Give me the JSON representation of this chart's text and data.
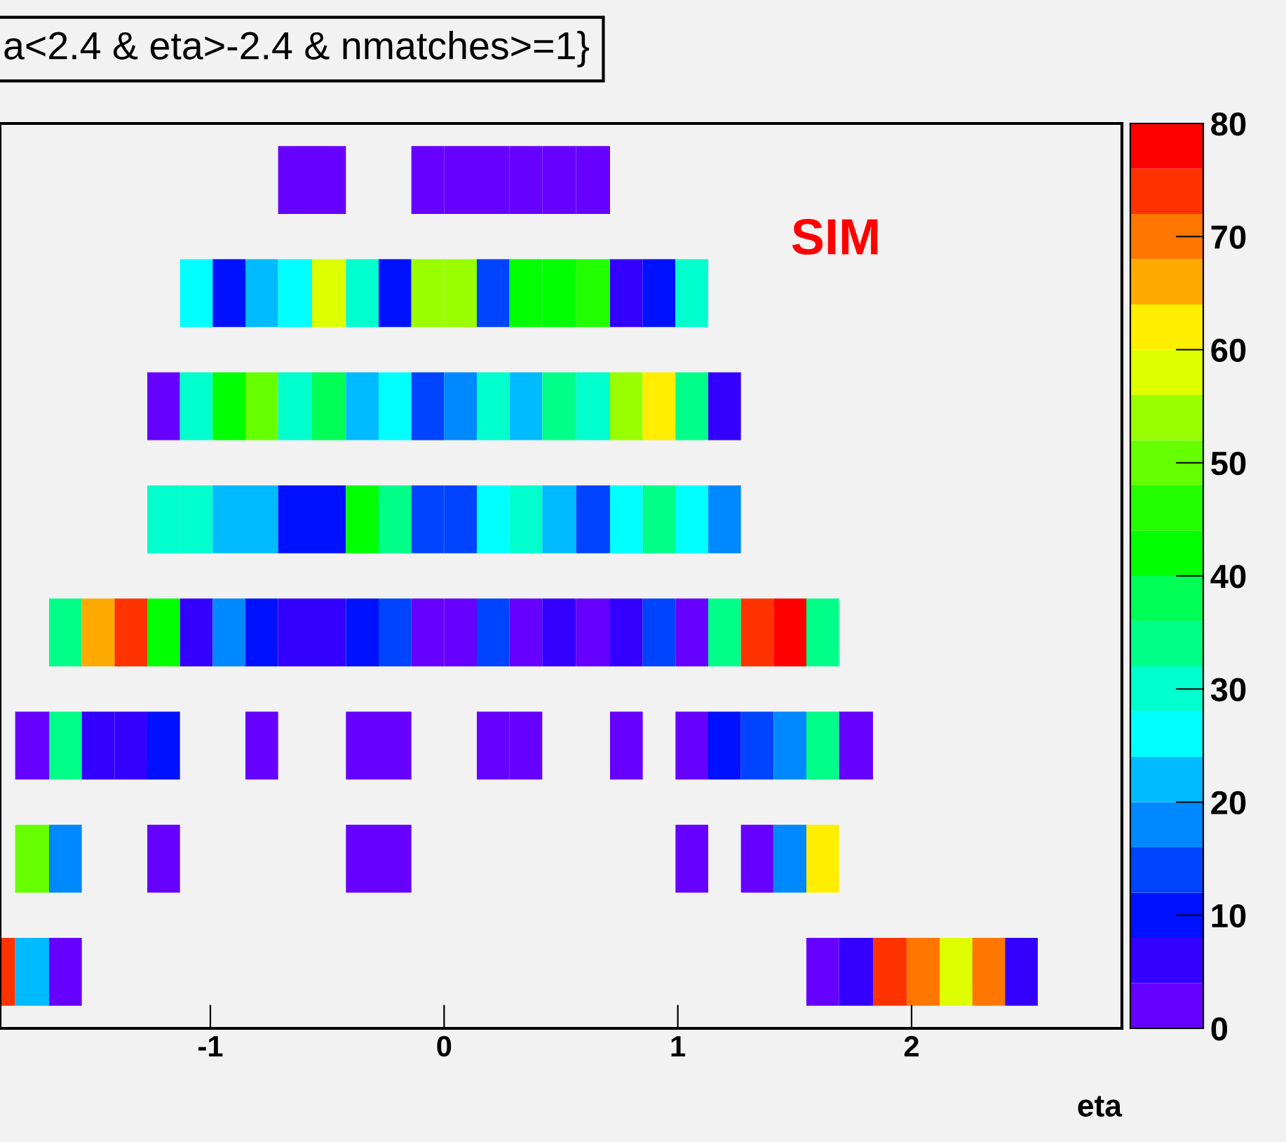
{
  "chart_data": {
    "type": "heatmap",
    "title": "a<2.4 & eta>-2.4 & nmatches>=1}",
    "xlabel": "eta",
    "annotations": [
      "SIM"
    ],
    "x": [
      -1.91,
      -1.76,
      -1.62,
      -1.48,
      -1.34,
      -1.2,
      -1.06,
      -0.92,
      -0.78,
      -0.64,
      -0.49,
      -0.35,
      -0.21,
      -0.07,
      0.07,
      0.21,
      0.35,
      0.49,
      0.64,
      0.78,
      0.92,
      1.06,
      1.2,
      1.34,
      1.48,
      1.62,
      1.76,
      1.91,
      2.05,
      2.19,
      2.33,
      2.47
    ],
    "xlim": [
      -1.9,
      2.9
    ],
    "xticks": [
      -1,
      0,
      1,
      2
    ],
    "tick_labels": "x",
    "y_categories": [
      null,
      null,
      null,
      null,
      null,
      null,
      null,
      null
    ],
    "clim": [
      0,
      80
    ],
    "cticks": [
      0,
      10,
      20,
      30,
      40,
      50,
      60,
      70,
      80
    ],
    "colors": [
      "#6600ff",
      "#3300ff",
      "#0011ff",
      "#0044ff",
      "#0088ff",
      "#00bbff",
      "#00ffff",
      "#00ffcc",
      "#00ff88",
      "#00ff55",
      "#00ff00",
      "#22ff00",
      "#66ff00",
      "#99ff00",
      "#ddff00",
      "#ffee00",
      "#ffaa00",
      "#ff7700",
      "#ff3300",
      "#ff0000"
    ],
    "cells": [
      [
        null,
        null,
        null,
        null,
        null,
        null,
        null,
        null,
        null,
        2,
        2,
        null,
        null,
        2,
        2,
        2,
        2,
        2,
        2,
        null,
        null,
        null,
        null,
        null,
        null,
        null,
        null,
        null,
        null,
        null,
        null,
        null
      ],
      [
        null,
        null,
        null,
        null,
        null,
        null,
        26,
        10,
        22,
        26,
        58,
        30,
        10,
        54,
        54,
        14,
        42,
        42,
        46,
        6,
        10,
        30,
        null,
        null,
        null,
        null,
        null,
        null,
        null,
        null,
        null,
        null
      ],
      [
        null,
        null,
        null,
        null,
        null,
        2,
        30,
        42,
        50,
        30,
        38,
        22,
        26,
        14,
        18,
        30,
        22,
        34,
        30,
        54,
        62,
        34,
        6,
        null,
        null,
        null,
        null,
        null,
        null,
        null,
        null,
        null
      ],
      [
        null,
        null,
        null,
        null,
        null,
        30,
        30,
        22,
        22,
        10,
        10,
        42,
        34,
        14,
        14,
        26,
        30,
        22,
        14,
        26,
        34,
        26,
        18,
        null,
        null,
        null,
        null,
        null,
        null,
        null,
        null,
        null
      ],
      [
        null,
        null,
        34,
        66,
        74,
        42,
        6,
        18,
        10,
        6,
        6,
        10,
        14,
        2,
        2,
        14,
        2,
        6,
        2,
        6,
        14,
        2,
        34,
        74,
        78,
        34,
        null,
        null,
        null,
        null,
        null,
        null
      ],
      [
        null,
        2,
        34,
        6,
        6,
        10,
        null,
        null,
        2,
        null,
        null,
        2,
        2,
        null,
        null,
        2,
        2,
        null,
        null,
        2,
        null,
        2,
        10,
        14,
        18,
        34,
        2,
        null,
        null,
        null,
        null,
        null
      ],
      [
        null,
        50,
        18,
        null,
        null,
        2,
        null,
        null,
        null,
        null,
        null,
        2,
        2,
        null,
        null,
        null,
        null,
        null,
        null,
        null,
        null,
        2,
        null,
        2,
        18,
        62,
        null,
        null,
        null,
        null,
        null,
        null
      ],
      [
        74,
        22,
        2,
        null,
        null,
        null,
        null,
        null,
        null,
        null,
        null,
        null,
        null,
        null,
        null,
        null,
        null,
        null,
        null,
        null,
        null,
        null,
        null,
        null,
        null,
        2,
        6,
        74,
        70,
        58,
        70,
        6
      ]
    ]
  }
}
